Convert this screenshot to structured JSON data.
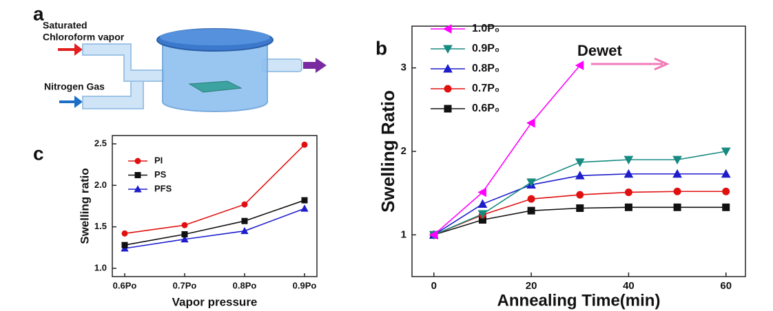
{
  "diagram": {
    "panel_label": "a",
    "labels": [
      "Saturated",
      "Chloroform vapor",
      "Nitrogen Gas"
    ]
  },
  "chart_data": [
    {
      "type": "line",
      "panel_label": "b",
      "y_label": "Swelling Ratio",
      "x_label": "Annealing Time(min)",
      "annotation": "Dewet",
      "x": [
        0,
        10,
        20,
        30,
        40,
        50,
        60
      ],
      "xlim": [
        -4.5,
        64
      ],
      "xticks": [
        0,
        20,
        40,
        60
      ],
      "ylim": [
        0.5,
        3.5
      ],
      "yticks": [
        1,
        2,
        3
      ],
      "legend": "upper left",
      "series": [
        {
          "name": "1.0P₀",
          "color": "#ff00ff",
          "marker": "triangle-left",
          "values": [
            1,
            1.51,
            2.34,
            3.03,
            null,
            null,
            null
          ]
        },
        {
          "name": "0.9P₀",
          "color": "#168a80",
          "marker": "triangle-down",
          "values": [
            1,
            1.25,
            1.63,
            1.87,
            1.9,
            1.9,
            2.0
          ]
        },
        {
          "name": "0.8P₀",
          "color": "#1d1dcc",
          "marker": "triangle-up",
          "values": [
            1,
            1.37,
            1.6,
            1.71,
            1.73,
            1.73,
            1.73
          ]
        },
        {
          "name": "0.7P₀",
          "color": "#e01010",
          "marker": "circle",
          "values": [
            1,
            1.24,
            1.43,
            1.48,
            1.51,
            1.52,
            1.52
          ]
        },
        {
          "name": "0.6P₀",
          "color": "#111111",
          "marker": "square",
          "values": [
            1,
            1.18,
            1.29,
            1.32,
            1.33,
            1.33,
            1.33
          ]
        }
      ]
    },
    {
      "type": "line",
      "panel_label": "c",
      "y_label": "Swelling ratio",
      "x_label": "Vapor pressure",
      "categories": [
        "0.6Po",
        "0.7Po",
        "0.8Po",
        "0.9Po"
      ],
      "ylim": [
        0.9,
        2.6
      ],
      "yticks": [
        {
          "value": 1,
          "label": "1.0"
        },
        {
          "value": 1.5,
          "label": "1.5"
        },
        {
          "value": 2,
          "label": "2.0"
        },
        {
          "value": 2.5,
          "label": "2.5"
        }
      ],
      "legend": "upper left",
      "series": [
        {
          "name": "PI",
          "color": "#e01010",
          "marker": "circle",
          "values": [
            1.42,
            1.52,
            1.77,
            2.49
          ]
        },
        {
          "name": "PS",
          "color": "#111111",
          "marker": "square",
          "values": [
            1.28,
            1.41,
            1.57,
            1.82
          ]
        },
        {
          "name": "PFS",
          "color": "#1d1dcc",
          "marker": "triangle-up",
          "values": [
            1.24,
            1.35,
            1.45,
            1.72
          ]
        }
      ]
    }
  ]
}
